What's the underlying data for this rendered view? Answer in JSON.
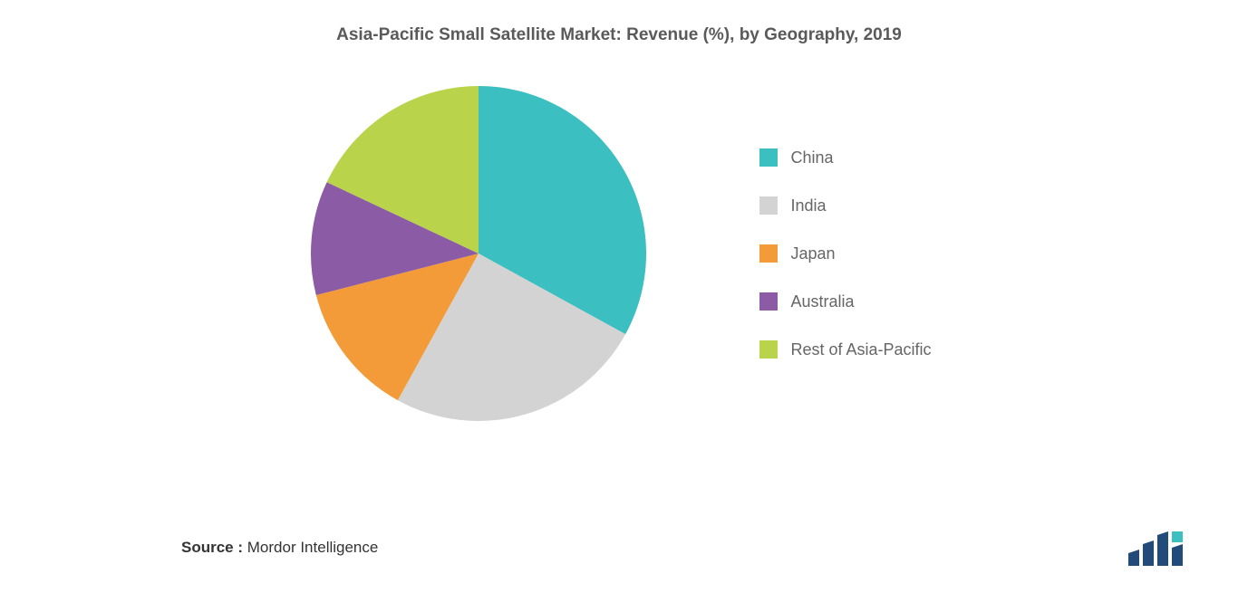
{
  "title": "Asia-Pacific Small Satellite Market: Revenue (%), by Geography, 2019",
  "chart": {
    "type": "pie",
    "background_color": "#ffffff",
    "title_fontsize": 19,
    "title_color": "#5a5a5a",
    "slices": [
      {
        "label": "China",
        "value": 33,
        "color": "#3bbfc1"
      },
      {
        "label": "India",
        "value": 25,
        "color": "#d3d3d3"
      },
      {
        "label": "Japan",
        "value": 13,
        "color": "#f29b38"
      },
      {
        "label": "Australia",
        "value": 11,
        "color": "#8b5ba6"
      },
      {
        "label": "Rest of Asia-Pacific",
        "value": 18,
        "color": "#b9d44a"
      }
    ],
    "legend_fontsize": 18,
    "legend_color": "#666666",
    "legend_swatch_size": 20,
    "start_angle_deg": -90,
    "radius": 185
  },
  "source": {
    "label": "Source :",
    "value": "Mordor Intelligence",
    "fontsize": 17
  },
  "logo": {
    "bar_color": "#204b7a",
    "accent_color": "#3bbfc1"
  }
}
